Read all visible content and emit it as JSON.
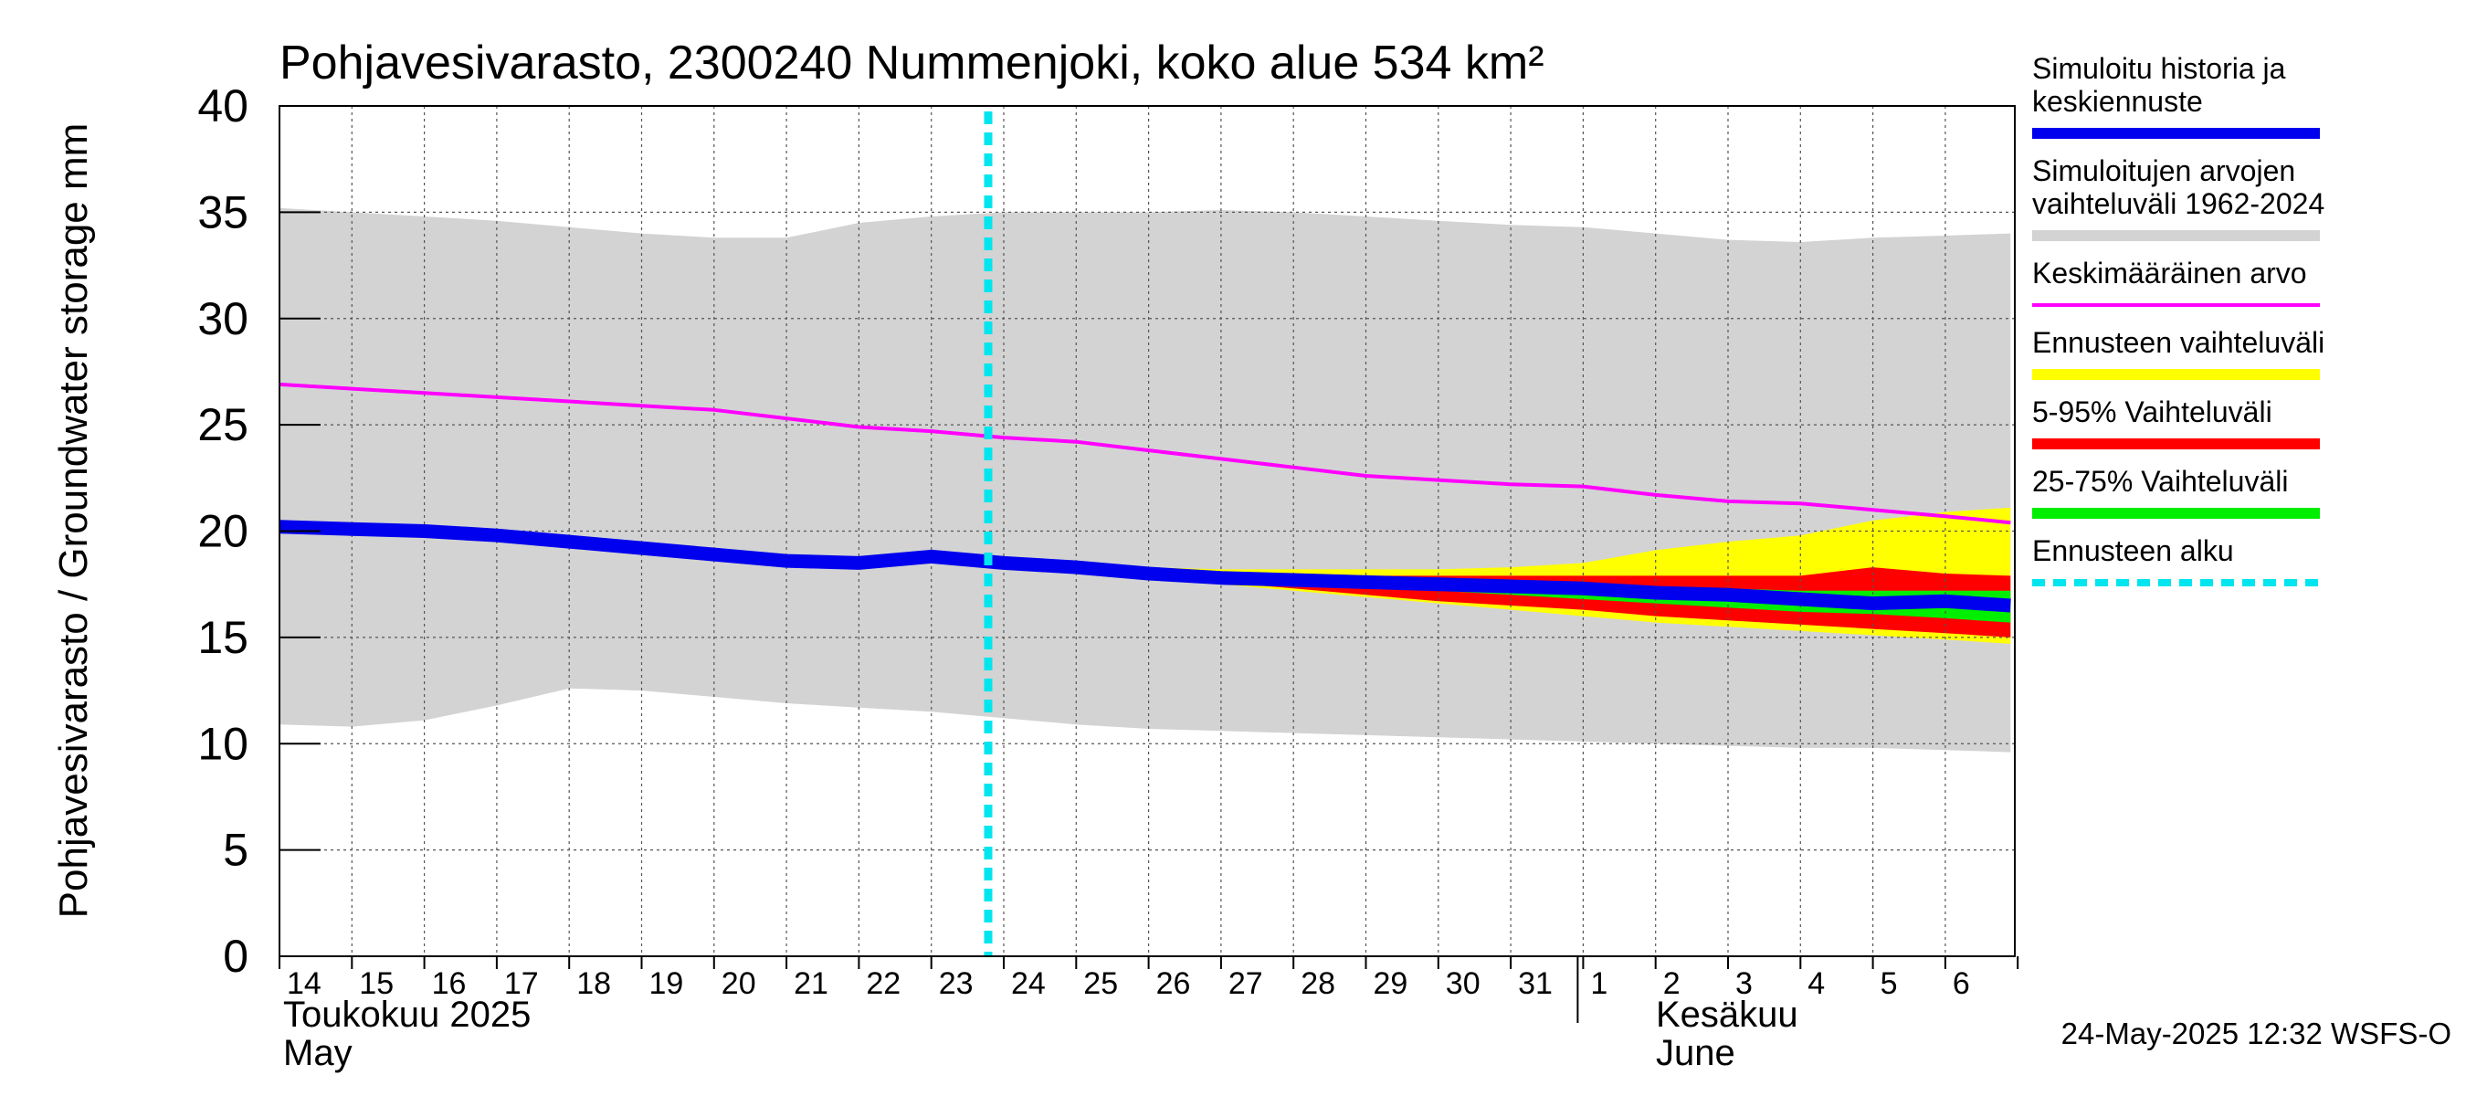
{
  "chart_data": {
    "type": "area",
    "title": "Pohjavesivarasto, 2300240 Nummenjoki, koko alue 534 km²",
    "ylabel": "Pohjavesivarasto / Groundwater storage   mm",
    "ylim": [
      0,
      40
    ],
    "yticks": [
      "0",
      "5",
      "10",
      "15",
      "20",
      "25",
      "30",
      "35",
      "40"
    ],
    "grid": true,
    "legend_position": "right",
    "x_day_labels": [
      "14",
      "15",
      "16",
      "17",
      "18",
      "19",
      "20",
      "21",
      "22",
      "23",
      "24",
      "25",
      "26",
      "27",
      "28",
      "29",
      "30",
      "31",
      "1",
      "2",
      "3",
      "4",
      "5",
      "6"
    ],
    "month_labels": {
      "may_fi": "Toukokuu  2025",
      "may_en": "May",
      "june_fi": "Kesäkuu",
      "june_en": "June"
    },
    "timestamp": "24-May-2025 12:32 WSFS-O",
    "forecast_start_day": "24",
    "series": [
      {
        "name": "Simuloitujen arvojen vaihteluväli 1962-2024",
        "kind": "band",
        "color": "#d3d3d3",
        "x": [
          "14",
          "15",
          "16",
          "17",
          "18",
          "19",
          "20",
          "21",
          "22",
          "23",
          "24",
          "25",
          "26",
          "27",
          "28",
          "29",
          "30",
          "31",
          "1",
          "2",
          "3",
          "4",
          "5",
          "6",
          "6.9"
        ],
        "upper": [
          35.2,
          35.0,
          34.8,
          34.6,
          34.3,
          34.0,
          33.8,
          33.8,
          34.5,
          34.8,
          35.0,
          35.0,
          35.0,
          35.1,
          35.0,
          34.8,
          34.6,
          34.4,
          34.3,
          34.0,
          33.7,
          33.6,
          33.8,
          33.9,
          34.0
        ],
        "lower": [
          10.9,
          10.8,
          11.1,
          11.8,
          12.6,
          12.5,
          12.2,
          11.9,
          11.7,
          11.5,
          11.2,
          10.9,
          10.7,
          10.6,
          10.5,
          10.4,
          10.3,
          10.2,
          10.1,
          10.0,
          9.9,
          9.8,
          9.8,
          9.7,
          9.6
        ]
      },
      {
        "name": "Ennusteen vaihteluväli",
        "kind": "band",
        "color": "#ffff00",
        "x": [
          "24",
          "25",
          "26",
          "27",
          "28",
          "29",
          "30",
          "31",
          "1",
          "2",
          "3",
          "4",
          "5",
          "6",
          "6.9"
        ],
        "upper": [
          18.5,
          18.4,
          18.3,
          18.2,
          18.2,
          18.2,
          18.2,
          18.3,
          18.5,
          19.1,
          19.5,
          19.8,
          20.5,
          20.9,
          21.1
        ],
        "lower": [
          18.5,
          18.2,
          17.9,
          17.5,
          17.2,
          16.9,
          16.6,
          16.3,
          16.0,
          15.7,
          15.5,
          15.3,
          15.1,
          14.9,
          14.7
        ]
      },
      {
        "name": "5-95% Vaihteluväli",
        "kind": "band",
        "color": "#ff0000",
        "x": [
          "24",
          "25",
          "26",
          "27",
          "28",
          "29",
          "30",
          "31",
          "1",
          "2",
          "3",
          "4",
          "5",
          "6",
          "6.9"
        ],
        "upper": [
          18.5,
          18.3,
          18.1,
          18.0,
          17.9,
          17.9,
          17.9,
          17.9,
          17.9,
          17.9,
          17.9,
          17.9,
          18.3,
          18.0,
          17.9
        ],
        "lower": [
          18.5,
          18.2,
          17.9,
          17.6,
          17.3,
          17.0,
          16.7,
          16.5,
          16.3,
          16.0,
          15.8,
          15.6,
          15.4,
          15.2,
          15.0
        ]
      },
      {
        "name": "25-75% Vaihteluväli",
        "kind": "band",
        "color": "#00ee00",
        "x": [
          "24",
          "25",
          "26",
          "27",
          "28",
          "29",
          "30",
          "31",
          "1",
          "2",
          "3",
          "4",
          "5",
          "6",
          "6.9"
        ],
        "upper": [
          18.5,
          18.3,
          18.1,
          17.9,
          17.8,
          17.8,
          17.7,
          17.6,
          17.5,
          17.4,
          17.3,
          17.2,
          17.2,
          17.2,
          17.2
        ],
        "lower": [
          18.5,
          18.2,
          18.0,
          17.8,
          17.6,
          17.4,
          17.2,
          17.0,
          16.8,
          16.6,
          16.4,
          16.2,
          16.1,
          15.9,
          15.7
        ]
      },
      {
        "name": "Keskimääräinen arvo",
        "kind": "line",
        "color": "#ff00ff",
        "x": [
          "14",
          "15",
          "16",
          "17",
          "18",
          "19",
          "20",
          "21",
          "22",
          "23",
          "24",
          "25",
          "26",
          "27",
          "28",
          "29",
          "30",
          "31",
          "1",
          "2",
          "3",
          "4",
          "5",
          "6",
          "6.9"
        ],
        "values": [
          26.9,
          26.7,
          26.5,
          26.3,
          26.1,
          25.9,
          25.7,
          25.3,
          24.9,
          24.7,
          24.4,
          24.2,
          23.8,
          23.4,
          23.0,
          22.6,
          22.4,
          22.2,
          22.1,
          21.7,
          21.4,
          21.3,
          21.0,
          20.7,
          20.4
        ]
      },
      {
        "name": "Simuloitu historia ja keskiennuste",
        "kind": "line",
        "color": "#0000ee",
        "x": [
          "14",
          "15",
          "16",
          "17",
          "18",
          "19",
          "20",
          "21",
          "22",
          "23",
          "24",
          "25",
          "26",
          "27",
          "28",
          "29",
          "30",
          "31",
          "1",
          "2",
          "3",
          "4",
          "5",
          "6",
          "6.9"
        ],
        "values": [
          20.2,
          20.1,
          20.0,
          19.8,
          19.5,
          19.2,
          18.9,
          18.6,
          18.5,
          18.8,
          18.5,
          18.3,
          18.0,
          17.8,
          17.7,
          17.6,
          17.5,
          17.4,
          17.3,
          17.1,
          17.0,
          16.8,
          16.6,
          16.7,
          16.5
        ]
      }
    ],
    "legend": [
      {
        "label_lines": [
          "Simuloitu historia ja",
          "keskiennuste"
        ],
        "color": "#0000ee",
        "style": "thick"
      },
      {
        "label_lines": [
          "Simuloitujen arvojen",
          "vaihteluväli 1962-2024"
        ],
        "color": "#d3d3d3",
        "style": "thick"
      },
      {
        "label_lines": [
          "Keskimääräinen arvo"
        ],
        "color": "#ff00ff",
        "style": "thin"
      },
      {
        "label_lines": [
          "Ennusteen vaihteluväli"
        ],
        "color": "#ffff00",
        "style": "thick"
      },
      {
        "label_lines": [
          "5-95% Vaihteluväli"
        ],
        "color": "#ff0000",
        "style": "thick"
      },
      {
        "label_lines": [
          "25-75% Vaihteluväli"
        ],
        "color": "#00ee00",
        "style": "thick"
      },
      {
        "label_lines": [
          "Ennusteen alku"
        ],
        "color": "#00e5ee",
        "style": "dashed"
      }
    ]
  }
}
